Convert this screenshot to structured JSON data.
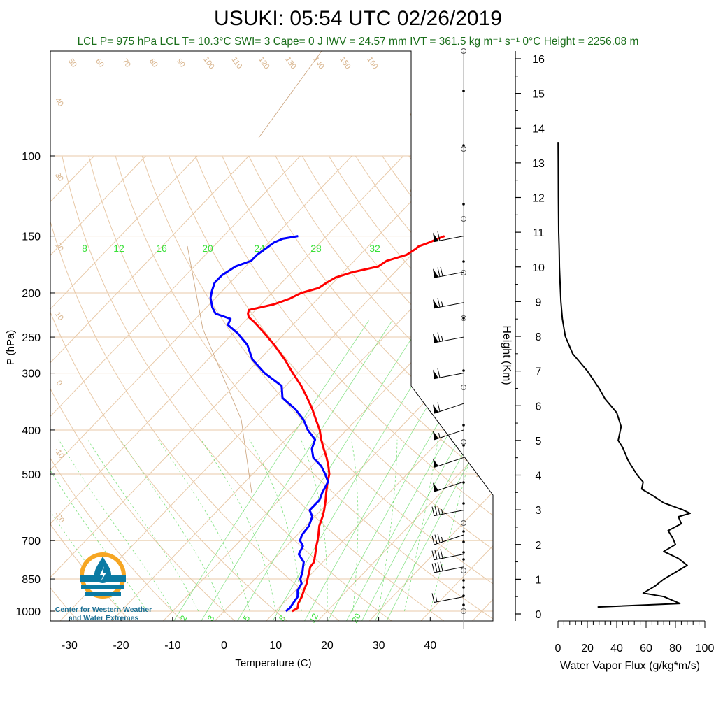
{
  "title": "USUKI: 05:54 UTC 02/26/2019",
  "stats_line": "LCL P= 975 hPa  LCL T= 10.3°C  SWI= 3  Cape= 0 J  IWV = 24.57 mm  IVT = 361.5 kg m⁻¹ s⁻¹  0°C Height = 2256.08 m",
  "logo": {
    "line1": "Center for Western Weather",
    "line2": "and Water Extremes",
    "icon": "water-drop-sun-icon"
  },
  "colors": {
    "temperature": "#ff0000",
    "dewpoint": "#0000ff",
    "skewt_lines": "#e8c9a8",
    "mixing_ratio": "#5dd85d",
    "labels_tan": "#d8b48c",
    "stats": "#1a6e1a"
  },
  "chart_data": [
    {
      "type": "line",
      "name": "skew-t",
      "xlabel": "Temperature (C)",
      "ylabel": "P (hPa)",
      "x_ticks": [
        "-30",
        "-20",
        "-10",
        "0",
        "10",
        "20",
        "30",
        "40"
      ],
      "y_ticks": [
        {
          "p": 100,
          "label": "100"
        },
        {
          "p": 150,
          "label": "150"
        },
        {
          "p": 200,
          "label": "200"
        },
        {
          "p": 250,
          "label": "250"
        },
        {
          "p": 300,
          "label": "300"
        },
        {
          "p": 400,
          "label": "400"
        },
        {
          "p": 500,
          "label": "500"
        },
        {
          "p": 700,
          "label": "700"
        },
        {
          "p": 850,
          "label": "850"
        },
        {
          "p": 1000,
          "label": "1000"
        }
      ],
      "xlim": [
        -34,
        48
      ],
      "ylim": [
        1050,
        100
      ],
      "log_y": true,
      "skew": true,
      "mixing_ratio_top": [
        "8",
        "12",
        "16",
        "20",
        "24",
        "28",
        "32"
      ],
      "mixing_ratio_bottom": [
        "2",
        "3",
        "5",
        "8",
        "12",
        "20"
      ],
      "dry_adiabat_labels_left": [
        "40",
        "30",
        "20",
        "10",
        "0",
        "-10",
        "-20"
      ],
      "dry_adiabat_labels_top": [
        "50",
        "60",
        "70",
        "80",
        "90",
        "100",
        "110",
        "120",
        "130",
        "140",
        "150",
        "160"
      ],
      "isotherm_labels_right": [
        "30",
        "20",
        "10",
        "0",
        "-10",
        "-20",
        "-30"
      ],
      "series": [
        {
          "name": "Temperature",
          "pressure": [
            1000,
            985,
            960,
            930,
            900,
            870,
            850,
            820,
            800,
            780,
            750,
            720,
            700,
            680,
            650,
            620,
            600,
            570,
            550,
            520,
            500,
            480,
            460,
            440,
            420,
            400,
            380,
            360,
            340,
            320,
            300,
            280,
            260,
            245,
            232,
            226,
            222,
            218,
            212,
            206,
            200,
            195,
            190,
            185,
            180,
            175,
            170,
            165,
            160,
            158,
            155,
            152,
            150
          ],
          "values": [
            13.2,
            13.7,
            12.9,
            12.4,
            11.6,
            10.9,
            10.2,
            9.2,
            8.5,
            8.3,
            7.1,
            5.8,
            5.0,
            4.1,
            2.6,
            1.5,
            0.6,
            -1.0,
            -2.2,
            -4.0,
            -5.1,
            -6.8,
            -8.7,
            -10.9,
            -13.1,
            -15.2,
            -17.8,
            -20.5,
            -23.6,
            -27.0,
            -31.0,
            -35.1,
            -39.9,
            -44.0,
            -47.9,
            -50.0,
            -50.8,
            -51.3,
            -47.5,
            -45.5,
            -44.3,
            -41.8,
            -41.3,
            -40.5,
            -38.2,
            -34.3,
            -33.7,
            -31.0,
            -30.3,
            -30.2,
            -28.9,
            -27.9,
            -27.1
          ]
        },
        {
          "name": "Dewpoint",
          "pressure": [
            1000,
            985,
            960,
            930,
            900,
            870,
            850,
            820,
            800,
            780,
            750,
            720,
            700,
            680,
            650,
            620,
            600,
            570,
            550,
            520,
            500,
            480,
            460,
            440,
            420,
            400,
            380,
            360,
            340,
            320,
            300,
            280,
            260,
            245,
            235,
            228,
            222,
            215,
            205,
            198,
            190,
            183,
            175,
            170,
            165,
            160,
            155,
            152,
            150
          ],
          "values": [
            12.0,
            12.2,
            11.9,
            11.6,
            10.4,
            9.9,
            8.8,
            7.9,
            7.1,
            6.3,
            3.9,
            3.2,
            1.6,
            0.9,
            0.6,
            -0.5,
            -2.2,
            -2.2,
            -3.0,
            -3.9,
            -5.9,
            -8.2,
            -11.3,
            -13.2,
            -14.3,
            -17.5,
            -20.2,
            -23.8,
            -28.4,
            -30.8,
            -36.5,
            -41.4,
            -45.1,
            -49.2,
            -52.6,
            -53.2,
            -57.1,
            -58.9,
            -61.0,
            -62.0,
            -63.0,
            -63.0,
            -62.0,
            -60.0,
            -60.0,
            -59.5,
            -59.0,
            -58.0,
            -55.5
          ]
        }
      ],
      "wind_barbs": [
        {
          "p": 150,
          "speed_kt": 60,
          "dir_deg": 280
        },
        {
          "p": 180,
          "speed_kt": 70,
          "dir_deg": 280
        },
        {
          "p": 210,
          "speed_kt": 65,
          "dir_deg": 285
        },
        {
          "p": 250,
          "speed_kt": 65,
          "dir_deg": 280
        },
        {
          "p": 300,
          "speed_kt": 60,
          "dir_deg": 280
        },
        {
          "p": 350,
          "speed_kt": 60,
          "dir_deg": 295
        },
        {
          "p": 400,
          "speed_kt": 55,
          "dir_deg": 295
        },
        {
          "p": 460,
          "speed_kt": 50,
          "dir_deg": 305
        },
        {
          "p": 520,
          "speed_kt": 50,
          "dir_deg": 315
        },
        {
          "p": 600,
          "speed_kt": 35,
          "dir_deg": 270
        },
        {
          "p": 680,
          "speed_kt": 35,
          "dir_deg": 295
        },
        {
          "p": 750,
          "speed_kt": 40,
          "dir_deg": 280
        },
        {
          "p": 800,
          "speed_kt": 40,
          "dir_deg": 275
        },
        {
          "p": 930,
          "speed_kt": 15,
          "dir_deg": 250
        }
      ]
    },
    {
      "type": "line",
      "name": "water-vapor-flux",
      "xlabel": "Water Vapor Flux (g/kg*m/s)",
      "ylabel": "Height (Km)",
      "x_ticks": [
        "0",
        "20",
        "40",
        "60",
        "80",
        "100"
      ],
      "y_ticks": [
        "0",
        "1",
        "2",
        "3",
        "4",
        "5",
        "6",
        "7",
        "8",
        "9",
        "10",
        "11",
        "12",
        "13",
        "14",
        "15",
        "16"
      ],
      "xlim": [
        0,
        100
      ],
      "ylim": [
        0,
        16
      ],
      "series": [
        {
          "name": "Water Vapor Flux",
          "height_km": [
            0.2,
            0.3,
            0.5,
            0.6,
            0.8,
            1.0,
            1.2,
            1.4,
            1.6,
            1.8,
            2.0,
            2.2,
            2.4,
            2.6,
            2.8,
            2.9,
            3.0,
            3.2,
            3.4,
            3.6,
            3.8,
            4.0,
            4.4,
            4.8,
            5.0,
            5.4,
            5.8,
            6.2,
            6.5,
            7.0,
            7.5,
            8.0,
            8.5,
            9.0,
            9.5,
            10.0,
            10.5,
            11.0,
            11.5,
            12.0,
            13.0,
            13.6
          ],
          "flux": [
            27,
            83,
            72,
            58,
            66,
            72,
            80,
            88,
            82,
            72,
            80,
            78,
            75,
            84,
            82,
            90,
            85,
            72,
            65,
            57,
            58,
            54,
            48,
            44,
            41,
            43,
            40,
            32,
            28,
            20,
            10,
            5,
            3,
            2,
            1.5,
            1,
            0.8,
            0.5,
            0.4,
            0.3,
            0.2,
            0.1
          ]
        }
      ]
    }
  ]
}
